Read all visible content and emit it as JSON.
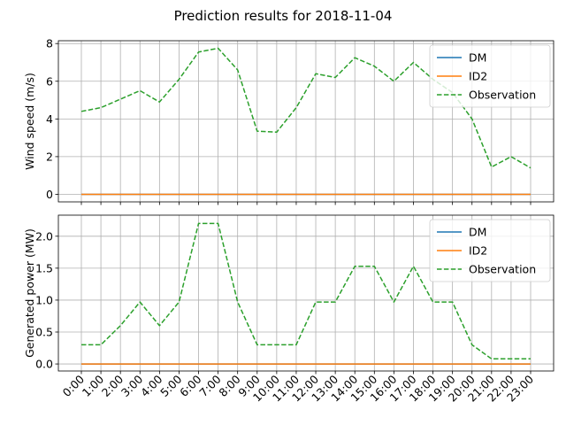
{
  "figure": {
    "title": "Prediction results for 2018-11-04"
  },
  "chart_data": [
    {
      "type": "line",
      "title": "",
      "xlabel": "",
      "ylabel": "Wind speed (m/s)",
      "categories": [
        "0:00",
        "1:00",
        "2:00",
        "3:00",
        "4:00",
        "5:00",
        "6:00",
        "7:00",
        "8:00",
        "9:00",
        "10:00",
        "11:00",
        "12:00",
        "13:00",
        "14:00",
        "15:00",
        "16:00",
        "17:00",
        "18:00",
        "19:00",
        "20:00",
        "21:00",
        "22:00",
        "23:00"
      ],
      "ylim": [
        -0.4,
        8.15
      ],
      "yticks": [
        0,
        2,
        4,
        6,
        8
      ],
      "grid": true,
      "legend_position": "upper-right",
      "series": [
        {
          "name": "DM",
          "color": "#1f77b4",
          "style": "solid",
          "values": [
            0,
            0,
            0,
            0,
            0,
            0,
            0,
            0,
            0,
            0,
            0,
            0,
            0,
            0,
            0,
            0,
            0,
            0,
            0,
            0,
            0,
            0,
            0,
            0
          ]
        },
        {
          "name": "ID2",
          "color": "#ff7f0e",
          "style": "solid",
          "values": [
            0,
            0,
            0,
            0,
            0,
            0,
            0,
            0,
            0,
            0,
            0,
            0,
            0,
            0,
            0,
            0,
            0,
            0,
            0,
            0,
            0,
            0,
            0,
            0
          ]
        },
        {
          "name": "Observation",
          "color": "#2ca02c",
          "style": "dashed",
          "values": [
            4.4,
            4.6,
            5.05,
            5.5,
            4.9,
            6.1,
            7.55,
            7.75,
            6.6,
            3.35,
            3.3,
            4.6,
            6.4,
            6.2,
            7.25,
            6.8,
            6.0,
            7.0,
            6.1,
            5.4,
            4.0,
            1.45,
            2.0,
            1.4
          ]
        }
      ]
    },
    {
      "type": "line",
      "title": "",
      "xlabel": "",
      "ylabel": "Generated power (MW)",
      "categories": [
        "0:00",
        "1:00",
        "2:00",
        "3:00",
        "4:00",
        "5:00",
        "6:00",
        "7:00",
        "8:00",
        "9:00",
        "10:00",
        "11:00",
        "12:00",
        "13:00",
        "14:00",
        "15:00",
        "16:00",
        "17:00",
        "18:00",
        "19:00",
        "20:00",
        "21:00",
        "22:00",
        "23:00"
      ],
      "ylim": [
        -0.11,
        2.33
      ],
      "yticks": [
        0.0,
        0.5,
        1.0,
        1.5,
        2.0
      ],
      "ytick_labels": [
        "0.0",
        "0.5",
        "1.0",
        "1.5",
        "2.0"
      ],
      "grid": true,
      "legend_position": "upper-right",
      "series": [
        {
          "name": "DM",
          "color": "#1f77b4",
          "style": "solid",
          "values": [
            0,
            0,
            0,
            0,
            0,
            0,
            0,
            0,
            0,
            0,
            0,
            0,
            0,
            0,
            0,
            0,
            0,
            0,
            0,
            0,
            0,
            0,
            0,
            0
          ]
        },
        {
          "name": "ID2",
          "color": "#ff7f0e",
          "style": "solid",
          "values": [
            0,
            0,
            0,
            0,
            0,
            0,
            0,
            0,
            0,
            0,
            0,
            0,
            0,
            0,
            0,
            0,
            0,
            0,
            0,
            0,
            0,
            0,
            0,
            0
          ]
        },
        {
          "name": "Observation",
          "color": "#2ca02c",
          "style": "dashed",
          "values": [
            0.3,
            0.3,
            0.6,
            0.97,
            0.6,
            0.97,
            2.2,
            2.2,
            0.97,
            0.3,
            0.3,
            0.3,
            0.97,
            0.97,
            1.53,
            1.53,
            0.97,
            1.53,
            0.97,
            0.97,
            0.3,
            0.08,
            0.08,
            0.08
          ]
        }
      ]
    }
  ]
}
